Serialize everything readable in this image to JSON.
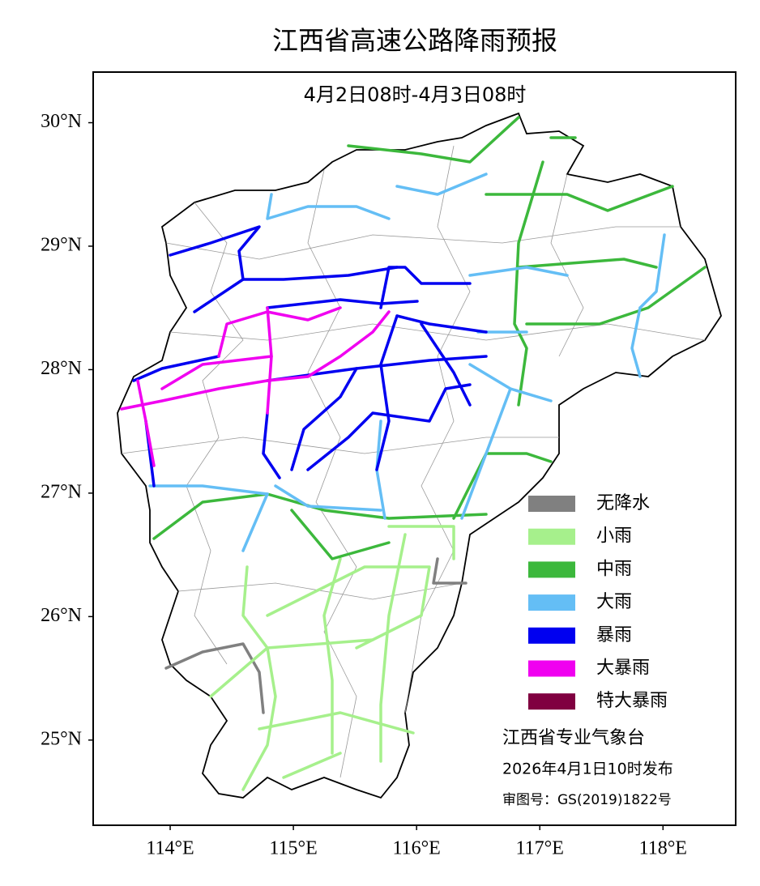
{
  "header": {
    "title": "江西省高速公路降雨预报",
    "period": "4月2日08时-4月3日08时"
  },
  "map": {
    "lonlim": [
      113.375,
      118.59
    ],
    "latlim": [
      24.31,
      30.41
    ],
    "lon_ticks": [
      {
        "value": 114,
        "label": "114°E"
      },
      {
        "value": 115,
        "label": "115°E"
      },
      {
        "value": 116,
        "label": "116°E"
      },
      {
        "value": 117,
        "label": "117°E"
      },
      {
        "value": 118,
        "label": "118°E"
      }
    ],
    "lat_ticks": [
      {
        "value": 25,
        "label": "25°N"
      },
      {
        "value": 26,
        "label": "26°N"
      },
      {
        "value": 27,
        "label": "27°N"
      },
      {
        "value": 28,
        "label": "28°N"
      },
      {
        "value": 29,
        "label": "29°N"
      },
      {
        "value": 30,
        "label": "30°N"
      }
    ]
  },
  "legend": [
    {
      "name": "无降水",
      "color": "#808080"
    },
    {
      "name": "小雨",
      "color": "#a6f08c"
    },
    {
      "name": "中雨",
      "color": "#3cb83c"
    },
    {
      "name": "大雨",
      "color": "#64bef5"
    },
    {
      "name": "暴雨",
      "color": "#0000f0"
    },
    {
      "name": "大暴雨",
      "color": "#f000f0"
    },
    {
      "name": "特大暴雨",
      "color": "#800040"
    }
  ],
  "credits": [
    "江西省专业气象台",
    "2026年4月1日10时发布",
    "审图号：GS(2019)1822号"
  ]
}
